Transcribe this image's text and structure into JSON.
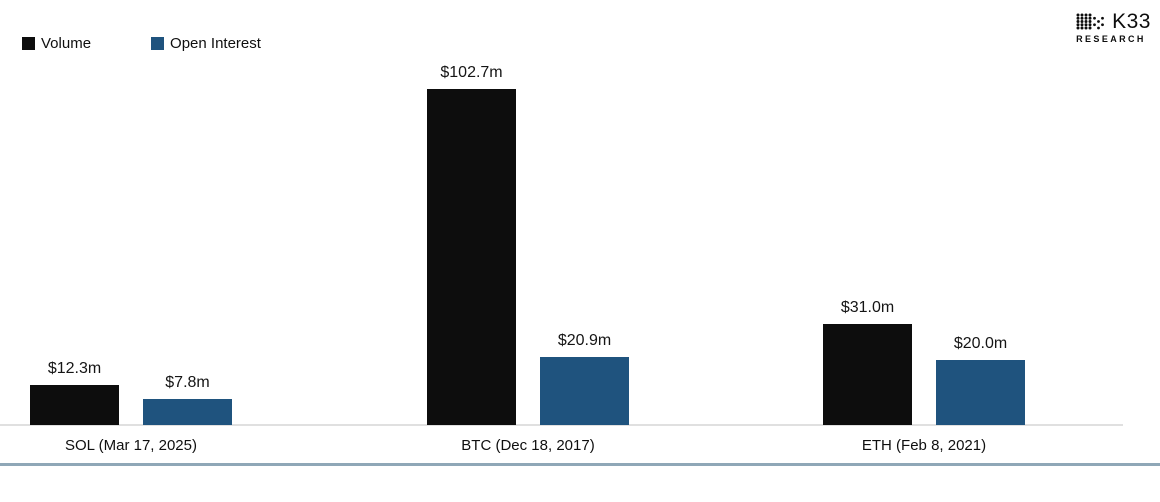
{
  "brand": {
    "name": "K33",
    "sub": "RESEARCH"
  },
  "legend": [
    {
      "label": "Volume",
      "color": "#0d0d0d"
    },
    {
      "label": "Open Interest",
      "color": "#1f537e"
    }
  ],
  "chart_data": {
    "type": "bar",
    "title": "",
    "categories": [
      "SOL (Mar 17, 2025)",
      "BTC (Dec 18, 2017)",
      "ETH (Feb 8, 2021)"
    ],
    "series": [
      {
        "name": "Volume",
        "color": "#0d0d0d",
        "values": [
          12.3,
          102.7,
          31.0
        ],
        "value_labels": [
          "$12.3m",
          "$102.7m",
          "$31.0m"
        ]
      },
      {
        "name": "Open Interest",
        "color": "#1f537e",
        "values": [
          7.8,
          20.9,
          20.0
        ],
        "value_labels": [
          "$7.8m",
          "$20.9m",
          "$20.0m"
        ]
      }
    ],
    "ylim": [
      0,
      110
    ],
    "grid": false,
    "legend_position": "top-left",
    "colors": {
      "axis_line": "#e0e0e0",
      "bottom_rule": "#8fa7b7",
      "background": "#ffffff"
    }
  }
}
